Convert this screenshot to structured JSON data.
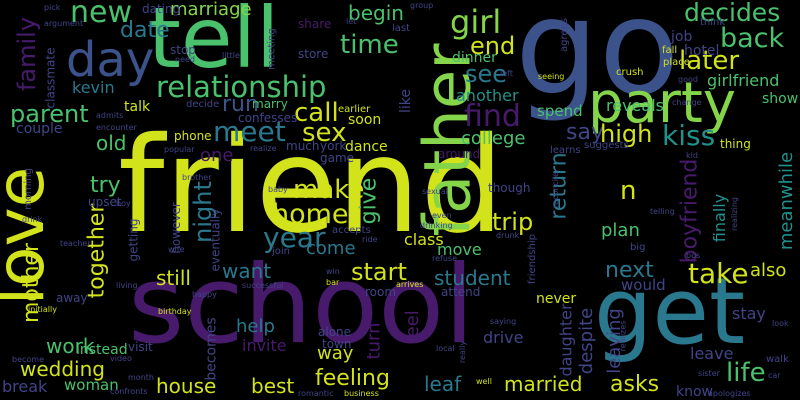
{
  "palette": {
    "background": "#000000",
    "yellow": "#d2e21b",
    "lime": "#85d54a",
    "green": "#4ac16d",
    "teal": "#21918c",
    "cyan": "#2a788e",
    "blue": "#3b528b",
    "indigo": "#414487",
    "purple": "#481a6c",
    "darkpurple": "#440154"
  },
  "words": [
    {
      "id": "friend",
      "text": "friend",
      "color": "#d2e21b"
    },
    {
      "id": "school",
      "text": "school",
      "color": "#481a6c"
    },
    {
      "id": "go",
      "text": "go",
      "color": "#3b528b"
    },
    {
      "id": "tell",
      "text": "tell",
      "color": "#4ac16d"
    },
    {
      "id": "get",
      "text": "get",
      "color": "#2a788e"
    },
    {
      "id": "love",
      "text": "love",
      "color": "#d2e21b"
    },
    {
      "id": "party",
      "text": "party",
      "color": "#85d54a"
    },
    {
      "id": "father",
      "text": "father",
      "color": "#85d54a"
    },
    {
      "id": "day",
      "text": "day",
      "color": "#3b528b"
    },
    {
      "id": "relationship",
      "text": "relationship",
      "color": "#4ac16d"
    },
    {
      "id": "new",
      "text": "new",
      "color": "#4ac16d"
    },
    {
      "id": "date",
      "text": "date",
      "color": "#2a788e"
    },
    {
      "id": "family",
      "text": "family",
      "color": "#481a6c"
    },
    {
      "id": "kevin",
      "text": "kevin",
      "color": "#2a788e"
    },
    {
      "id": "parent",
      "text": "parent",
      "color": "#4ac16d"
    },
    {
      "id": "marriage",
      "text": "marriage",
      "color": "#85d54a"
    },
    {
      "id": "begin",
      "text": "begin",
      "color": "#4ac16d"
    },
    {
      "id": "time",
      "text": "time",
      "color": "#4ac16d"
    },
    {
      "id": "girl",
      "text": "girl",
      "color": "#85d54a"
    },
    {
      "id": "end",
      "text": "end",
      "color": "#d2e21b"
    },
    {
      "id": "decides",
      "text": "decides",
      "color": "#4ac16d"
    },
    {
      "id": "back",
      "text": "back",
      "color": "#4ac16d"
    },
    {
      "id": "later",
      "text": "later",
      "color": "#d2e21b"
    },
    {
      "id": "girlfriend",
      "text": "girlfriend",
      "color": "#4ac16d"
    },
    {
      "id": "see",
      "text": "see",
      "color": "#2a788e"
    },
    {
      "id": "another",
      "text": "another",
      "color": "#21918c"
    },
    {
      "id": "dinner",
      "text": "dinner",
      "color": "#4ac16d"
    },
    {
      "id": "reveals",
      "text": "reveals",
      "color": "#4ac16d"
    },
    {
      "id": "show",
      "text": "show",
      "color": "#4ac16d"
    },
    {
      "id": "run",
      "text": "run",
      "color": "#3b528b"
    },
    {
      "id": "meet",
      "text": "meet",
      "color": "#2a788e"
    },
    {
      "id": "call",
      "text": "call",
      "color": "#d2e21b"
    },
    {
      "id": "sex",
      "text": "sex",
      "color": "#d2e21b"
    },
    {
      "id": "find",
      "text": "find",
      "color": "#481a6c"
    },
    {
      "id": "say",
      "text": "say",
      "color": "#414487"
    },
    {
      "id": "high",
      "text": "high",
      "color": "#d2e21b"
    },
    {
      "id": "kiss",
      "text": "kiss",
      "color": "#21918c"
    },
    {
      "id": "college",
      "text": "college",
      "color": "#4ac16d"
    },
    {
      "id": "spend",
      "text": "spend",
      "color": "#4ac16d"
    },
    {
      "id": "old",
      "text": "old",
      "color": "#4ac16d"
    },
    {
      "id": "one",
      "text": "one",
      "color": "#481a6c"
    },
    {
      "id": "try",
      "text": "try",
      "color": "#4ac16d"
    },
    {
      "id": "make",
      "text": "make",
      "color": "#d2e21b"
    },
    {
      "id": "give",
      "text": "give",
      "color": "#4ac16d"
    },
    {
      "id": "n",
      "text": "n",
      "color": "#d2e21b"
    },
    {
      "id": "night",
      "text": "night",
      "color": "#2a788e"
    },
    {
      "id": "home",
      "text": "home",
      "color": "#d2e21b"
    },
    {
      "id": "year",
      "text": "year",
      "color": "#2a788e"
    },
    {
      "id": "trip",
      "text": "trip",
      "color": "#d2e21b"
    },
    {
      "id": "return",
      "text": "return",
      "color": "#2a788e"
    },
    {
      "id": "boyfriend",
      "text": "boyfriend",
      "color": "#481a6c"
    },
    {
      "id": "finally",
      "text": "finally",
      "color": "#21918c"
    },
    {
      "id": "meanwhile",
      "text": "meanwhile",
      "color": "#21918c"
    },
    {
      "id": "together",
      "text": "together",
      "color": "#d2e21b"
    },
    {
      "id": "come",
      "text": "come",
      "color": "#2a788e"
    },
    {
      "id": "class",
      "text": "class",
      "color": "#d2e21b"
    },
    {
      "id": "plan",
      "text": "plan",
      "color": "#4ac16d"
    },
    {
      "id": "mother",
      "text": "mother",
      "color": "#d2e21b"
    },
    {
      "id": "want",
      "text": "want",
      "color": "#2a788e"
    },
    {
      "id": "start",
      "text": "start",
      "color": "#d2e21b"
    },
    {
      "id": "move",
      "text": "move",
      "color": "#4ac16d"
    },
    {
      "id": "next",
      "text": "next",
      "color": "#2a788e"
    },
    {
      "id": "take",
      "text": "take",
      "color": "#d2e21b"
    },
    {
      "id": "also",
      "text": "also",
      "color": "#d2e21b"
    },
    {
      "id": "still",
      "text": "still",
      "color": "#d2e21b"
    },
    {
      "id": "student",
      "text": "student",
      "color": "#2a788e"
    },
    {
      "id": "would",
      "text": "would",
      "color": "#414487"
    },
    {
      "id": "never",
      "text": "never",
      "color": "#d2e21b"
    },
    {
      "id": "help",
      "text": "help",
      "color": "#2a788e"
    },
    {
      "id": "invite",
      "text": "invite",
      "color": "#481a6c"
    },
    {
      "id": "feel",
      "text": "feel",
      "color": "#481a6c"
    },
    {
      "id": "despite",
      "text": "despite",
      "color": "#414487"
    },
    {
      "id": "leaving",
      "text": "leaving",
      "color": "#414487"
    },
    {
      "id": "stay",
      "text": "stay",
      "color": "#414487"
    },
    {
      "id": "work",
      "text": "work",
      "color": "#4ac16d"
    },
    {
      "id": "wedding",
      "text": "wedding",
      "color": "#d2e21b"
    },
    {
      "id": "becomes",
      "text": "becomes",
      "color": "#414487"
    },
    {
      "id": "way",
      "text": "way",
      "color": "#d2e21b"
    },
    {
      "id": "turn",
      "text": "turn",
      "color": "#481a6c"
    },
    {
      "id": "drive",
      "text": "drive",
      "color": "#414487"
    },
    {
      "id": "daughter",
      "text": "daughter",
      "color": "#414487"
    },
    {
      "id": "leave",
      "text": "leave",
      "color": "#414487"
    },
    {
      "id": "life",
      "text": "life",
      "color": "#4ac16d"
    },
    {
      "id": "house",
      "text": "house",
      "color": "#d2e21b"
    },
    {
      "id": "best",
      "text": "best",
      "color": "#d2e21b"
    },
    {
      "id": "feeling",
      "text": "feeling",
      "color": "#d2e21b"
    },
    {
      "id": "leaf",
      "text": "leaf",
      "color": "#2a788e"
    },
    {
      "id": "married",
      "text": "married",
      "color": "#d2e21b"
    },
    {
      "id": "asks",
      "text": "asks",
      "color": "#d2e21b"
    },
    {
      "id": "woman",
      "text": "woman",
      "color": "#4ac16d"
    },
    {
      "id": "instead",
      "text": "instead",
      "color": "#4ac16d"
    },
    {
      "id": "break",
      "text": "break",
      "color": "#414487"
    },
    {
      "id": "know",
      "text": "know",
      "color": "#414487"
    },
    {
      "id": "couple",
      "text": "couple",
      "color": "#414487"
    },
    {
      "id": "classmate",
      "text": "classmate",
      "color": "#414487"
    },
    {
      "id": "job",
      "text": "job",
      "color": "#414487"
    },
    {
      "id": "hotel",
      "text": "hotel",
      "color": "#414487"
    },
    {
      "id": "talk",
      "text": "talk",
      "color": "#d2e21b"
    },
    {
      "id": "dance",
      "text": "dance",
      "color": "#d2e21b"
    },
    {
      "id": "game",
      "text": "game",
      "color": "#414487"
    },
    {
      "id": "like",
      "text": "like",
      "color": "#414487"
    },
    {
      "id": "store",
      "text": "store",
      "color": "#414487"
    },
    {
      "id": "soon",
      "text": "soon",
      "color": "#d2e21b"
    },
    {
      "id": "marry",
      "text": "marry",
      "color": "#4ac16d"
    },
    {
      "id": "dating",
      "text": "dating",
      "color": "#414487"
    },
    {
      "id": "share",
      "text": "share",
      "color": "#481a6c"
    },
    {
      "id": "upset",
      "text": "upset",
      "color": "#414487"
    },
    {
      "id": "away",
      "text": "away",
      "color": "#414487"
    },
    {
      "id": "getting",
      "text": "getting",
      "color": "#414487"
    },
    {
      "id": "however",
      "text": "however",
      "color": "#414487"
    },
    {
      "id": "eventually",
      "text": "eventually",
      "color": "#414487"
    },
    {
      "id": "though",
      "text": "though",
      "color": "#414487"
    },
    {
      "id": "room",
      "text": "room",
      "color": "#414487"
    },
    {
      "id": "attend",
      "text": "attend",
      "color": "#414487"
    },
    {
      "id": "visit",
      "text": "visit",
      "color": "#414487"
    },
    {
      "id": "alone",
      "text": "alone",
      "color": "#414487"
    },
    {
      "id": "town",
      "text": "town",
      "color": "#414487"
    },
    {
      "id": "around",
      "text": "around",
      "color": "#481a6c"
    },
    {
      "id": "phone",
      "text": "phone",
      "color": "#d2e21b"
    },
    {
      "id": "confesses",
      "text": "confesses",
      "color": "#414487"
    },
    {
      "id": "much",
      "text": "much",
      "color": "#414487"
    },
    {
      "id": "york",
      "text": "york",
      "color": "#414487"
    },
    {
      "id": "stop",
      "text": "stop",
      "color": "#414487"
    },
    {
      "id": "meeting",
      "text": "meeting",
      "color": "#414487"
    },
    {
      "id": "last",
      "text": "last",
      "color": "#414487"
    },
    {
      "id": "earlier",
      "text": "earlier",
      "color": "#d2e21b"
    },
    {
      "id": "decide",
      "text": "decide",
      "color": "#414487"
    },
    {
      "id": "learns",
      "text": "learns",
      "color": "#414487"
    },
    {
      "id": "suggests",
      "text": "suggests",
      "color": "#414487"
    },
    {
      "id": "thing",
      "text": "thing",
      "color": "#d2e21b"
    },
    {
      "id": "crush",
      "text": "crush",
      "color": "#d2e21b"
    },
    {
      "id": "fall",
      "text": "fall",
      "color": "#d2e21b"
    },
    {
      "id": "place",
      "text": "place",
      "color": "#d2e21b"
    },
    {
      "id": "good",
      "text": "good",
      "color": "#414487"
    },
    {
      "id": "change",
      "text": "change",
      "color": "#414487"
    },
    {
      "id": "seeing",
      "text": "seeing",
      "color": "#d2e21b"
    },
    {
      "id": "left",
      "text": "left",
      "color": "#414487"
    },
    {
      "id": "agrees",
      "text": "agrees",
      "color": "#414487"
    },
    {
      "id": "think",
      "text": "think",
      "color": "#414487"
    },
    {
      "id": "group",
      "text": "group",
      "color": "#414487"
    },
    {
      "id": "argument",
      "text": "argument",
      "color": "#414487"
    },
    {
      "id": "pick",
      "text": "pick",
      "color": "#414487"
    },
    {
      "id": "need",
      "text": "need",
      "color": "#414487"
    },
    {
      "id": "little",
      "text": "little",
      "color": "#414487"
    },
    {
      "id": "let",
      "text": "let",
      "color": "#414487"
    },
    {
      "id": "admits",
      "text": "admits",
      "color": "#414487"
    },
    {
      "id": "encounter",
      "text": "encounter",
      "color": "#414487"
    },
    {
      "id": "popular",
      "text": "popular",
      "color": "#414487"
    },
    {
      "id": "realize",
      "text": "realize",
      "color": "#414487"
    },
    {
      "id": "morning",
      "text": "morning",
      "color": "#414487"
    },
    {
      "id": "drink",
      "text": "drink",
      "color": "#414487"
    },
    {
      "id": "teacher",
      "text": "teacher",
      "color": "#414487"
    },
    {
      "id": "boy",
      "text": "boy",
      "color": "#414487"
    },
    {
      "id": "brother",
      "text": "brother",
      "color": "#414487"
    },
    {
      "id": "baby",
      "text": "baby",
      "color": "#414487"
    },
    {
      "id": "wife",
      "text": "wife",
      "color": "#414487"
    },
    {
      "id": "sexual",
      "text": "sexual",
      "color": "#414487"
    },
    {
      "id": "drinking",
      "text": "drinking",
      "color": "#414487"
    },
    {
      "id": "drunk",
      "text": "drunk",
      "color": "#414487"
    },
    {
      "id": "ride",
      "text": "ride",
      "color": "#414487"
    },
    {
      "id": "accepts",
      "text": "accepts",
      "color": "#414487"
    },
    {
      "id": "join",
      "text": "join",
      "color": "#414487"
    },
    {
      "id": "even",
      "text": "even",
      "color": "#414487"
    },
    {
      "id": "refuse",
      "text": "refuse",
      "color": "#414487"
    },
    {
      "id": "friendship",
      "text": "friendship",
      "color": "#414487"
    },
    {
      "id": "reconcile",
      "text": "reconcile",
      "color": "#414487"
    },
    {
      "id": "kid",
      "text": "kid",
      "color": "#414487"
    },
    {
      "id": "telling",
      "text": "telling",
      "color": "#414487"
    },
    {
      "id": "realizing",
      "text": "realizing",
      "color": "#414487"
    },
    {
      "id": "big",
      "text": "big",
      "color": "#414487"
    },
    {
      "id": "bos",
      "text": "bos",
      "color": "#414487"
    },
    {
      "id": "living",
      "text": "living",
      "color": "#414487"
    },
    {
      "id": "initially",
      "text": "initially",
      "color": "#d2e21b"
    },
    {
      "id": "happy",
      "text": "happy",
      "color": "#414487"
    },
    {
      "id": "win",
      "text": "win",
      "color": "#414487"
    },
    {
      "id": "bar",
      "text": "bar",
      "color": "#d2e21b"
    },
    {
      "id": "successful",
      "text": "successful",
      "color": "#414487"
    },
    {
      "id": "arrives",
      "text": "arrives",
      "color": "#d2e21b"
    },
    {
      "id": "birthday",
      "text": "birthday",
      "color": "#d2e21b"
    },
    {
      "id": "saying",
      "text": "saying",
      "color": "#414487"
    },
    {
      "id": "realizes",
      "text": "realizes",
      "color": "#414487"
    },
    {
      "id": "look",
      "text": "look",
      "color": "#414487"
    },
    {
      "id": "sister",
      "text": "sister",
      "color": "#414487"
    },
    {
      "id": "walk",
      "text": "walk",
      "color": "#414487"
    },
    {
      "id": "car",
      "text": "car",
      "color": "#414487"
    },
    {
      "id": "apologizes",
      "text": "apologizes",
      "color": "#414487"
    },
    {
      "id": "become",
      "text": "become",
      "color": "#414487"
    },
    {
      "id": "video",
      "text": "video",
      "color": "#414487"
    },
    {
      "id": "month",
      "text": "month",
      "color": "#414487"
    },
    {
      "id": "confronts",
      "text": "confronts",
      "color": "#414487"
    },
    {
      "id": "romantic",
      "text": "romantic",
      "color": "#414487"
    },
    {
      "id": "business",
      "text": "business",
      "color": "#d2e21b"
    },
    {
      "id": "really",
      "text": "really",
      "color": "#414487"
    },
    {
      "id": "well",
      "text": "well",
      "color": "#d2e21b"
    },
    {
      "id": "local",
      "text": "local",
      "color": "#414487"
    }
  ]
}
